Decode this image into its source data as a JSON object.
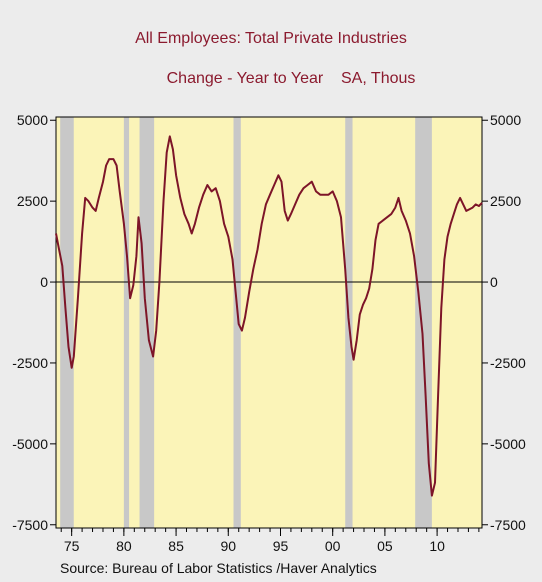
{
  "chart_data": {
    "type": "line",
    "title": "All Employees: Total Private Industries",
    "subtitle_left": "Change - Year to Year",
    "subtitle_right": "SA, Thous",
    "source": "Source:  Bureau of Labor Statistics /Haver Analytics",
    "xlim": [
      1973.5,
      2014.3
    ],
    "ylim": [
      -7600,
      5100
    ],
    "y_ticks": [
      -7500,
      -5000,
      -2500,
      0,
      2500,
      5000
    ],
    "x_ticks": [
      {
        "year": 1975,
        "label": "75"
      },
      {
        "year": 1980,
        "label": "80"
      },
      {
        "year": 1985,
        "label": "85"
      },
      {
        "year": 1990,
        "label": "90"
      },
      {
        "year": 1995,
        "label": "95"
      },
      {
        "year": 2000,
        "label": "00"
      },
      {
        "year": 2005,
        "label": "05"
      },
      {
        "year": 2010,
        "label": "10"
      }
    ],
    "recessions": [
      {
        "start": 1973.9,
        "end": 1975.2
      },
      {
        "start": 1980.0,
        "end": 1980.5
      },
      {
        "start": 1981.5,
        "end": 1982.9
      },
      {
        "start": 1990.5,
        "end": 1991.2
      },
      {
        "start": 2001.2,
        "end": 2001.9
      },
      {
        "start": 2007.9,
        "end": 2009.5
      }
    ],
    "series": [
      {
        "values": [
          [
            1973.5,
            1500
          ],
          [
            1973.8,
            1000
          ],
          [
            1974.1,
            500
          ],
          [
            1974.4,
            -800
          ],
          [
            1974.7,
            -2000
          ],
          [
            1975.0,
            -2650
          ],
          [
            1975.2,
            -2300
          ],
          [
            1975.6,
            -500
          ],
          [
            1976.0,
            1500
          ],
          [
            1976.3,
            2600
          ],
          [
            1976.6,
            2500
          ],
          [
            1977.0,
            2300
          ],
          [
            1977.3,
            2200
          ],
          [
            1977.6,
            2600
          ],
          [
            1978.0,
            3100
          ],
          [
            1978.3,
            3600
          ],
          [
            1978.6,
            3800
          ],
          [
            1979.0,
            3800
          ],
          [
            1979.3,
            3600
          ],
          [
            1979.6,
            2800
          ],
          [
            1980.0,
            1800
          ],
          [
            1980.3,
            800
          ],
          [
            1980.6,
            -500
          ],
          [
            1980.9,
            -100
          ],
          [
            1981.2,
            800
          ],
          [
            1981.4,
            2000
          ],
          [
            1981.7,
            1200
          ],
          [
            1982.0,
            -500
          ],
          [
            1982.4,
            -1800
          ],
          [
            1982.8,
            -2300
          ],
          [
            1983.1,
            -1500
          ],
          [
            1983.4,
            0
          ],
          [
            1983.8,
            2500
          ],
          [
            1984.1,
            4000
          ],
          [
            1984.4,
            4500
          ],
          [
            1984.7,
            4100
          ],
          [
            1985.0,
            3300
          ],
          [
            1985.4,
            2600
          ],
          [
            1985.8,
            2100
          ],
          [
            1986.2,
            1800
          ],
          [
            1986.5,
            1500
          ],
          [
            1986.8,
            1800
          ],
          [
            1987.2,
            2300
          ],
          [
            1987.6,
            2700
          ],
          [
            1988.0,
            3000
          ],
          [
            1988.4,
            2800
          ],
          [
            1988.8,
            2900
          ],
          [
            1989.2,
            2500
          ],
          [
            1989.6,
            1800
          ],
          [
            1990.0,
            1400
          ],
          [
            1990.4,
            700
          ],
          [
            1990.7,
            -300
          ],
          [
            1991.0,
            -1300
          ],
          [
            1991.3,
            -1500
          ],
          [
            1991.6,
            -1100
          ],
          [
            1992.0,
            -300
          ],
          [
            1992.4,
            400
          ],
          [
            1992.8,
            1000
          ],
          [
            1993.2,
            1800
          ],
          [
            1993.6,
            2400
          ],
          [
            1994.0,
            2700
          ],
          [
            1994.4,
            3000
          ],
          [
            1994.8,
            3300
          ],
          [
            1995.1,
            3100
          ],
          [
            1995.4,
            2200
          ],
          [
            1995.7,
            1900
          ],
          [
            1996.0,
            2100
          ],
          [
            1996.4,
            2400
          ],
          [
            1996.8,
            2700
          ],
          [
            1997.2,
            2900
          ],
          [
            1997.6,
            3000
          ],
          [
            1998.0,
            3100
          ],
          [
            1998.4,
            2800
          ],
          [
            1998.8,
            2700
          ],
          [
            1999.2,
            2700
          ],
          [
            1999.6,
            2700
          ],
          [
            2000.0,
            2800
          ],
          [
            2000.4,
            2500
          ],
          [
            2000.8,
            2000
          ],
          [
            2001.0,
            1200
          ],
          [
            2001.2,
            400
          ],
          [
            2001.5,
            -1100
          ],
          [
            2001.8,
            -2000
          ],
          [
            2002.0,
            -2400
          ],
          [
            2002.3,
            -1800
          ],
          [
            2002.6,
            -1000
          ],
          [
            2002.9,
            -700
          ],
          [
            2003.2,
            -500
          ],
          [
            2003.5,
            -200
          ],
          [
            2003.8,
            400
          ],
          [
            2004.1,
            1300
          ],
          [
            2004.4,
            1800
          ],
          [
            2004.8,
            1900
          ],
          [
            2005.2,
            2000
          ],
          [
            2005.6,
            2100
          ],
          [
            2006.0,
            2300
          ],
          [
            2006.3,
            2600
          ],
          [
            2006.6,
            2200
          ],
          [
            2007.0,
            1900
          ],
          [
            2007.4,
            1500
          ],
          [
            2007.8,
            800
          ],
          [
            2008.2,
            -300
          ],
          [
            2008.6,
            -1600
          ],
          [
            2008.9,
            -3500
          ],
          [
            2009.2,
            -5600
          ],
          [
            2009.5,
            -6600
          ],
          [
            2009.8,
            -6200
          ],
          [
            2010.1,
            -3500
          ],
          [
            2010.4,
            -800
          ],
          [
            2010.7,
            700
          ],
          [
            2011.0,
            1400
          ],
          [
            2011.3,
            1800
          ],
          [
            2011.6,
            2100
          ],
          [
            2011.9,
            2400
          ],
          [
            2012.2,
            2600
          ],
          [
            2012.5,
            2400
          ],
          [
            2012.8,
            2200
          ],
          [
            2013.1,
            2250
          ],
          [
            2013.4,
            2300
          ],
          [
            2013.7,
            2400
          ],
          [
            2014.0,
            2350
          ],
          [
            2014.3,
            2450
          ]
        ]
      }
    ]
  },
  "colors": {
    "plot_background": "#fbf4b8",
    "page_background": "#ececec",
    "recession_shade": "#c8c8c8",
    "line": "#7d1528",
    "title_text": "#8b1a2e"
  }
}
